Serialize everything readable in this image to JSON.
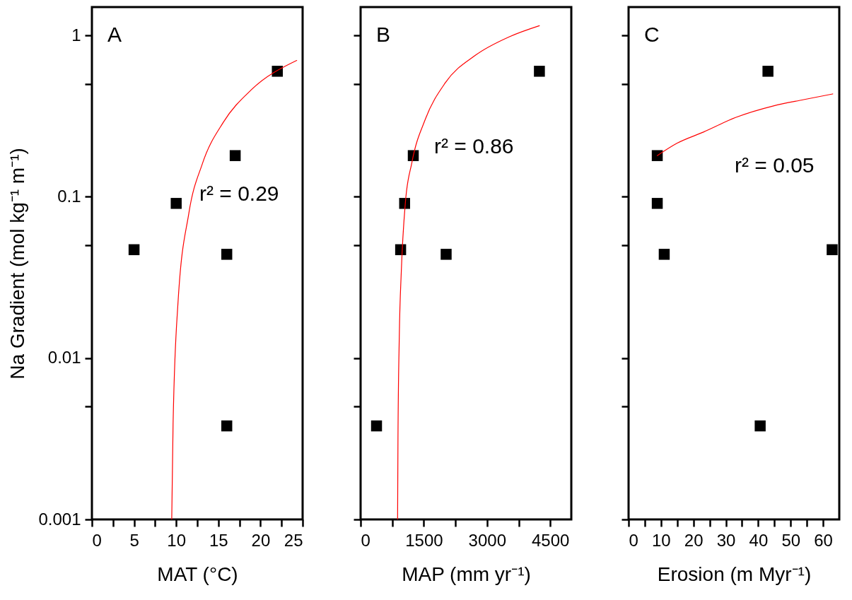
{
  "chart_data": [
    {
      "type": "scatter",
      "xlabel": "MAT (°C)",
      "ylabel": "Na Gradient (mol kg⁻¹ m⁻¹)",
      "log": "y",
      "xlim": [
        0,
        25
      ],
      "xticks": [
        0,
        {
          "value": 2.5,
          "label": null
        },
        5,
        {
          "value": 7.5,
          "label": null
        },
        10,
        {
          "value": 12.5,
          "label": null
        },
        15,
        {
          "value": 17.5,
          "label": null
        },
        20,
        {
          "value": 22.5,
          "label": null
        },
        25
      ],
      "ylim": [
        0.001,
        1.5
      ],
      "yticks": [
        {
          "value": 0.001,
          "label": "0.001"
        },
        {
          "value": 0.005,
          "label": null
        },
        {
          "value": 0.01,
          "label": "0.01"
        },
        {
          "value": 0.05,
          "label": null
        },
        {
          "value": 0.1,
          "label": "0.1"
        },
        {
          "value": 0.5,
          "label": null
        },
        1
      ],
      "annotations": [
        "A",
        "r² = 0.29"
      ],
      "series": [
        {
          "marker": "square",
          "color": "#000000",
          "x": [
            5,
            10,
            16,
            17,
            22,
            16
          ],
          "values": [
            0.047,
            0.091,
            0.044,
            0.18,
            0.6,
            0.0038
          ]
        },
        {
          "type": "line",
          "color": "#ff0000",
          "x": [
            9.47,
            9.63,
            10.2,
            11.5,
            13.1,
            15.6,
            18.9,
            24.3
          ],
          "values": [
            0.001,
            0.0039,
            0.0215,
            0.079,
            0.16,
            0.29,
            0.46,
            0.7
          ]
        }
      ]
    },
    {
      "type": "scatter",
      "xlabel": "MAP (mm yr⁻¹)",
      "log": "y",
      "tick_labels": "x",
      "xlim": [
        0,
        5000
      ],
      "xticks": [
        0,
        {
          "value": 750,
          "label": null
        },
        1500,
        {
          "value": 2250,
          "label": null
        },
        3000,
        {
          "value": 3750,
          "label": null
        },
        4500
      ],
      "ylim": [
        0.001,
        1.5
      ],
      "yticks": [
        0.001,
        0.005,
        0.01,
        0.05,
        0.1,
        0.5,
        1
      ],
      "annotations": [
        "B",
        "r² = 0.86"
      ],
      "series": [
        {
          "marker": "square",
          "color": "#000000",
          "x": [
            950,
            1045,
            2030,
            1250,
            4243,
            378
          ],
          "values": [
            0.047,
            0.091,
            0.044,
            0.18,
            0.6,
            0.0038
          ]
        },
        {
          "type": "line",
          "color": "#ff0000",
          "x": [
            878,
            887,
            918,
            967,
            1061,
            1217,
            1537,
            2013,
            2728,
            3522,
            4243
          ],
          "values": [
            0.001,
            0.0032,
            0.0135,
            0.035,
            0.091,
            0.163,
            0.303,
            0.51,
            0.755,
            0.98,
            1.15
          ]
        }
      ]
    },
    {
      "type": "scatter",
      "xlabel": "Erosion (m Myr⁻¹)",
      "log": "y",
      "tick_labels": "x",
      "xlim": [
        0,
        65
      ],
      "xticks": [
        0,
        {
          "value": 5,
          "label": null
        },
        10,
        {
          "value": 15,
          "label": null
        },
        20,
        {
          "value": 25,
          "label": null
        },
        30,
        {
          "value": 35,
          "label": null
        },
        40,
        {
          "value": 45,
          "label": null
        },
        50,
        {
          "value": 55,
          "label": null
        },
        60
      ],
      "ylim": [
        0.001,
        1.5
      ],
      "yticks": [
        0.001,
        0.005,
        0.01,
        0.05,
        0.1,
        0.5,
        1
      ],
      "annotations": [
        "C",
        "r² = 0.05"
      ],
      "series": [
        {
          "marker": "square",
          "color": "#000000",
          "x": [
            62.8,
            8.85,
            11,
            8.85,
            43,
            40.6
          ],
          "values": [
            0.047,
            0.091,
            0.044,
            0.18,
            0.6,
            0.0038
          ]
        },
        {
          "type": "line",
          "color": "#ff0000",
          "x": [
            8.85,
            15,
            23.1,
            33,
            44.7,
            54,
            63
          ],
          "values": [
            0.18,
            0.215,
            0.252,
            0.31,
            0.366,
            0.4,
            0.434
          ]
        }
      ]
    }
  ]
}
